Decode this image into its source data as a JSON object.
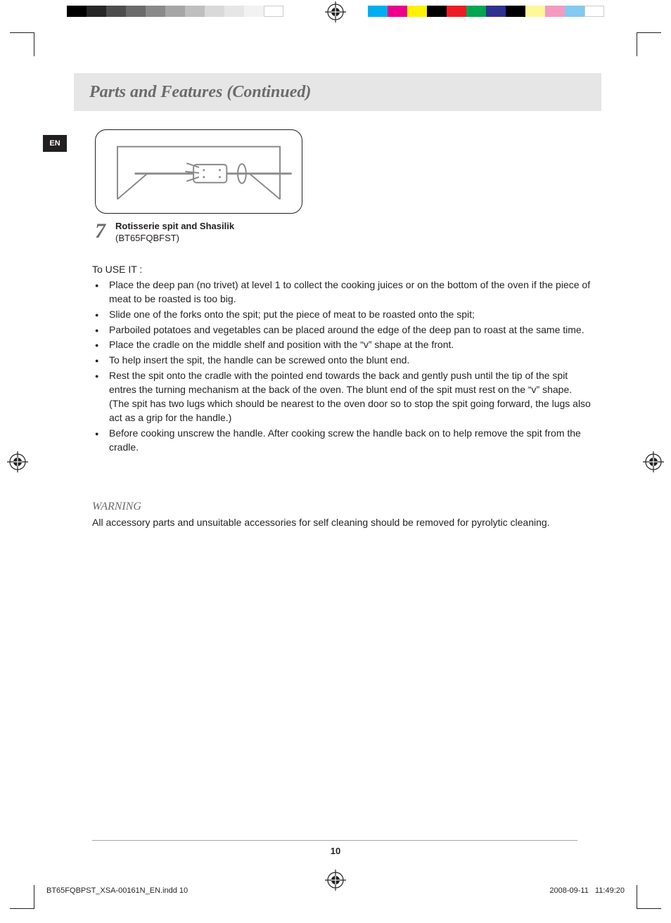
{
  "calibration": {
    "gray_cells": [
      "#000000",
      "#262626",
      "#4d4d4d",
      "#6b6b6b",
      "#8a8a8a",
      "#a6a6a6",
      "#bfbfbf",
      "#d9d9d9",
      "#e6e6e6",
      "#f2f2f2",
      "#ffffff"
    ],
    "color_cells": [
      "#00aeef",
      "#ec008c",
      "#fff200",
      "#000000",
      "#ed1c24",
      "#00a651",
      "#2e3192",
      "#000000",
      "#fff799",
      "#f49ac1",
      "#82caee",
      "#ffffff"
    ]
  },
  "badge": {
    "text": "EN"
  },
  "header": {
    "title": "Parts and Features (Continued)"
  },
  "item": {
    "number": "7",
    "title_bold": "Rotisserie spit and Shasilik",
    "subtitle": "(BT65FQBFST)"
  },
  "lead": "To USE IT :",
  "bullets": [
    "Place the deep pan (no trivet) at level 1 to collect the cooking juices or on the bottom of the oven if the piece of meat to be roasted is too big.",
    "Slide one of the forks onto the spit; put the piece of meat to be roasted onto the spit;",
    "Parboiled potatoes and vegetables can be placed around the edge of the deep pan to roast at the same time.",
    "Place the cradle on the middle shelf and position with the “v” shape at the front.",
    "To help insert the spit, the handle can be screwed onto the blunt end.",
    "Rest the spit onto the cradle with the pointed end towards the back and gently push until the tip of the spit entres the turning mechanism at the back of the oven. The blunt end of the spit must rest on the “v” shape. (The spit has two lugs which should be nearest to the oven door so to stop the spit going forward, the lugs also act as a grip for the handle.)",
    "Before cooking unscrew the handle. After cooking screw the handle back on to help remove the spit from the cradle."
  ],
  "warning": {
    "heading": "WARNING",
    "text": "All accessory parts and unsuitable accessories for self cleaning should be removed for pyrolytic cleaning."
  },
  "page_number": "10",
  "slug": {
    "file": "BT65FQBPST_XSA-00161N_EN.indd   10",
    "date": "2008-09-11",
    "time": "11:49:20"
  }
}
